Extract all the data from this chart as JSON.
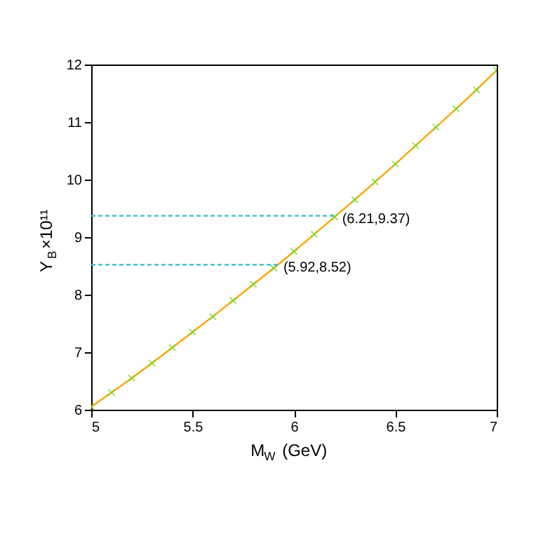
{
  "chart_data": {
    "type": "line",
    "xlabel": "M$_{W}$ (GeV)",
    "ylabel": "Y$_{B}$×10¹¹",
    "xlim": [
      5,
      7
    ],
    "xticks": [
      5,
      5.5,
      6,
      6.5,
      7
    ],
    "ylim": [
      6,
      12
    ],
    "yticks": [
      6,
      7,
      8,
      9,
      10,
      11,
      12
    ],
    "grid": false,
    "x": [
      5,
      5.1,
      5.2,
      5.3,
      5.4,
      5.5,
      5.6,
      5.7,
      5.8,
      5.9,
      6,
      6.1,
      6.2,
      6.3,
      6.4,
      6.5,
      6.6,
      6.7,
      6.8,
      6.9,
      7
    ],
    "series": [
      {
        "color": "#ffa500",
        "line_style": "solid",
        "marker": "none",
        "values": [
          6.05,
          6.3,
          6.55,
          6.81,
          7.08,
          7.35,
          7.62,
          7.9,
          8.18,
          8.46,
          8.75,
          9.05,
          9.35,
          9.65,
          9.96,
          10.27,
          10.59,
          10.91,
          11.23,
          11.56,
          11.9
        ]
      },
      {
        "type": "scatter",
        "color": "#66dd22",
        "marker": "cross",
        "values": [
          6.05,
          6.3,
          6.55,
          6.81,
          7.08,
          7.35,
          7.62,
          7.9,
          8.18,
          8.46,
          8.75,
          9.05,
          9.35,
          9.65,
          9.96,
          10.27,
          10.59,
          10.91,
          11.23,
          11.56,
          11.9
        ]
      },
      {
        "color": "#33bbcc",
        "line_style": "dashed",
        "marker": "none",
        "x": [
          5,
          5.92
        ],
        "values": [
          8.52,
          8.52
        ]
      },
      {
        "color": "#33bbcc",
        "line_style": "dashed",
        "marker": "none",
        "x": [
          5,
          6.21
        ],
        "values": [
          9.37,
          9.37
        ]
      }
    ],
    "annotations": [
      {
        "text": "(6.21,9.37)",
        "x": 6.21,
        "y": 9.37
      },
      {
        "text": "(5.92,8.52)",
        "x": 5.92,
        "y": 8.52
      }
    ]
  }
}
